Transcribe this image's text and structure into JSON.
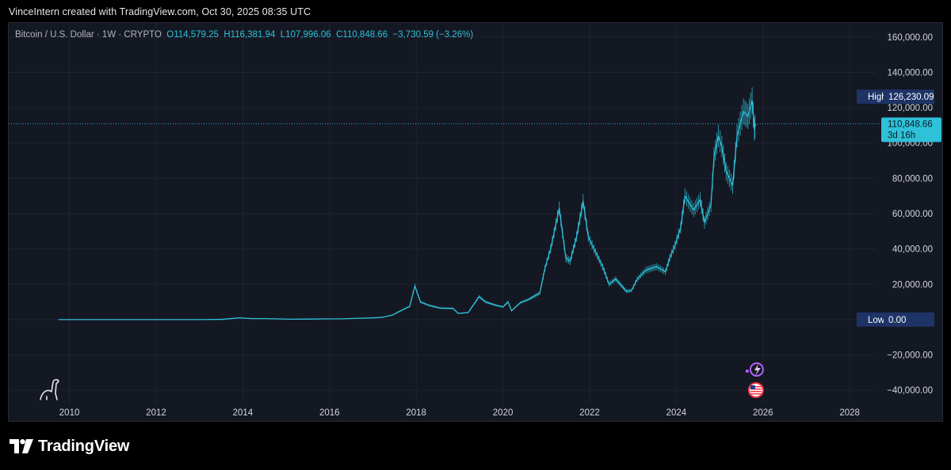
{
  "caption": "VinceIntern created with TradingView.com, Oct 30, 2025 08:35 UTC",
  "symbol": {
    "name": "Bitcoin / U.S. Dollar · 1W · CRYPTO",
    "open": "O114,579.25",
    "high": "H116,381.94",
    "low": "L107,996.06",
    "close": "C110,848.66",
    "change": "−3,730.59 (−3.26%)"
  },
  "brand": {
    "name": "TradingView"
  },
  "colors": {
    "accent": "#2ec1d8",
    "background": "#141823",
    "tag": "#1e3366"
  },
  "chart_data": {
    "type": "line",
    "title": "",
    "xlabel": "",
    "ylabel": "",
    "xlim": [
      2008.6,
      2028.6
    ],
    "ylim": [
      -48000,
      168000
    ],
    "x_ticks": [
      "2010",
      "2012",
      "2014",
      "2016",
      "2018",
      "2020",
      "2022",
      "2024",
      "2026",
      "2028"
    ],
    "y_ticks": [
      "160,000.00",
      "140,000.00",
      "120,000.00",
      "100,000.00",
      "80,000.00",
      "60,000.00",
      "40,000.00",
      "20,000.00",
      "0.00",
      "−20,000.00",
      "−40,000.00"
    ],
    "series": [
      {
        "points": [
          [
            2009.75,
            0
          ],
          [
            2010.5,
            0.1
          ],
          [
            2011.0,
            0.3
          ],
          [
            2011.45,
            15
          ],
          [
            2011.8,
            3
          ],
          [
            2012.5,
            7
          ],
          [
            2013.0,
            13
          ],
          [
            2013.3,
            140
          ],
          [
            2013.5,
            90
          ],
          [
            2013.92,
            1000
          ],
          [
            2014.2,
            600
          ],
          [
            2014.5,
            600
          ],
          [
            2014.9,
            350
          ],
          [
            2015.1,
            220
          ],
          [
            2015.5,
            250
          ],
          [
            2015.9,
            400
          ],
          [
            2016.3,
            430
          ],
          [
            2016.6,
            650
          ],
          [
            2016.95,
            950
          ],
          [
            2017.2,
            1200
          ],
          [
            2017.45,
            2500
          ],
          [
            2017.6,
            4500
          ],
          [
            2017.85,
            7500
          ],
          [
            2017.97,
            19000
          ],
          [
            2018.1,
            10000
          ],
          [
            2018.3,
            8000
          ],
          [
            2018.55,
            6500
          ],
          [
            2018.85,
            6300
          ],
          [
            2018.97,
            3500
          ],
          [
            2019.2,
            4000
          ],
          [
            2019.45,
            13000
          ],
          [
            2019.6,
            10000
          ],
          [
            2019.85,
            8000
          ],
          [
            2020.0,
            7200
          ],
          [
            2020.12,
            10000
          ],
          [
            2020.2,
            5000
          ],
          [
            2020.4,
            9500
          ],
          [
            2020.6,
            11500
          ],
          [
            2020.85,
            15000
          ],
          [
            2020.97,
            29000
          ],
          [
            2021.1,
            40000
          ],
          [
            2021.3,
            63000
          ],
          [
            2021.45,
            35000
          ],
          [
            2021.55,
            33000
          ],
          [
            2021.7,
            47000
          ],
          [
            2021.85,
            67000
          ],
          [
            2021.97,
            47000
          ],
          [
            2022.1,
            40000
          ],
          [
            2022.3,
            30000
          ],
          [
            2022.45,
            20000
          ],
          [
            2022.6,
            23000
          ],
          [
            2022.85,
            16000
          ],
          [
            2022.97,
            16500
          ],
          [
            2023.1,
            23000
          ],
          [
            2023.3,
            28000
          ],
          [
            2023.55,
            30000
          ],
          [
            2023.75,
            27000
          ],
          [
            2023.85,
            35000
          ],
          [
            2023.97,
            42000
          ],
          [
            2024.1,
            52000
          ],
          [
            2024.2,
            70000
          ],
          [
            2024.4,
            62000
          ],
          [
            2024.55,
            68000
          ],
          [
            2024.65,
            55000
          ],
          [
            2024.8,
            65000
          ],
          [
            2024.87,
            92000
          ],
          [
            2024.97,
            104000
          ],
          [
            2025.05,
            98000
          ],
          [
            2025.15,
            84000
          ],
          [
            2025.3,
            76000
          ],
          [
            2025.4,
            104000
          ],
          [
            2025.55,
            118000
          ],
          [
            2025.65,
            115000
          ],
          [
            2025.75,
            124000
          ],
          [
            2025.8,
            108000
          ],
          [
            2025.83,
            110849
          ]
        ]
      }
    ],
    "current_price": {
      "value": 110848.66,
      "label": "110,848.66",
      "countdown": "3d 16h"
    },
    "range_high": {
      "value": 126230.09,
      "tag": "High",
      "label": "126,230.09"
    },
    "range_low": {
      "value": 0,
      "tag": "Low",
      "label": "0.00"
    },
    "markers": [
      {
        "x": 2025.8,
        "icon": "flash-event-icon"
      },
      {
        "x": 2025.8,
        "icon": "us-flag-icon"
      }
    ]
  }
}
